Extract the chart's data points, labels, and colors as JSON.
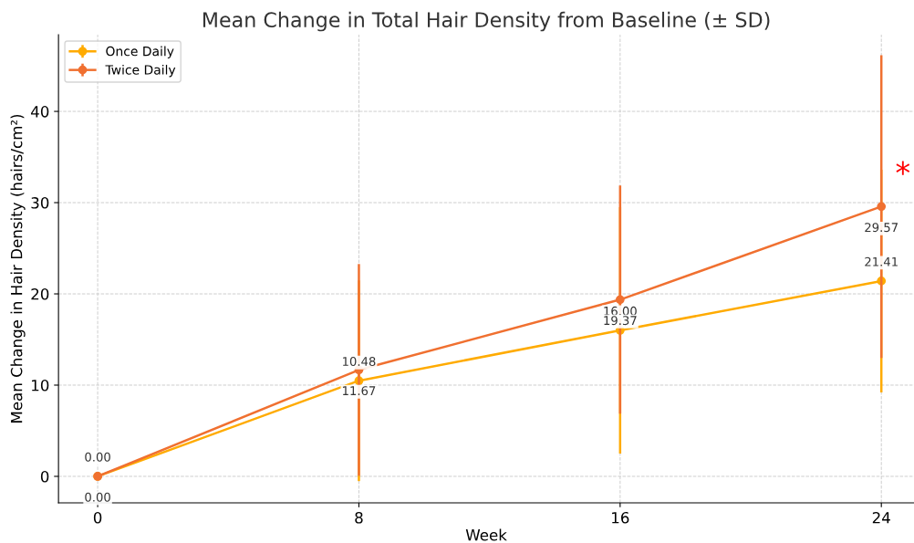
{
  "chart_data": {
    "type": "line",
    "title": "Mean Change in Total Hair Density from Baseline (± SD)",
    "xlabel": "Week",
    "ylabel": "Mean Change in Hair Density (hairs/cm²)",
    "x": [
      0,
      8,
      16,
      24
    ],
    "series": [
      {
        "name": "Once Daily",
        "color": "#ffab00",
        "values": [
          0,
          10.48,
          16.0,
          21.41
        ],
        "errors": [
          0,
          11,
          13.5,
          12.2
        ],
        "value_labels": [
          "0.00",
          "10.48",
          "16.00",
          "21.41"
        ]
      },
      {
        "name": "Twice Daily",
        "color": "#f07030",
        "values": [
          0,
          11.67,
          19.37,
          29.57
        ],
        "errors": [
          0,
          11.6,
          12.5,
          16.6
        ],
        "value_labels": [
          "0.00",
          "11.67",
          "19.37",
          "29.57"
        ]
      }
    ],
    "xlim": [
      -1.2,
      25
    ],
    "ylim": [
      -2.9,
      48.4
    ],
    "xticks": [
      0,
      8,
      16,
      24
    ],
    "yticks": [
      0,
      10,
      20,
      30,
      40
    ],
    "grid": true,
    "legend": "top left",
    "marker": "circle",
    "line_style": "solid",
    "annotations": [
      {
        "text": "*",
        "x": 24,
        "y": 33
      }
    ]
  }
}
